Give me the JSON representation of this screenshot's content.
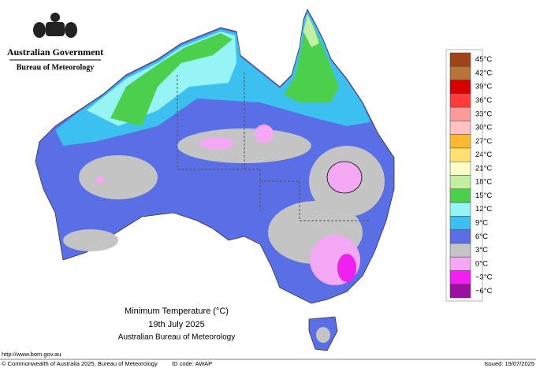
{
  "header": {
    "agency": "Australian Government",
    "bureau": "Bureau of Meteorology"
  },
  "map": {
    "title": "Minimum Temperature (°C)",
    "date": "19th July 2025",
    "source": "Australian Bureau of Meteorology"
  },
  "legend": [
    {
      "label": "45°C",
      "color": "#9e4418"
    },
    {
      "label": "42°C",
      "color": "#b8753a"
    },
    {
      "label": "39°C",
      "color": "#d80000"
    },
    {
      "label": "36°C",
      "color": "#ff3c3c"
    },
    {
      "label": "33°C",
      "color": "#ff9a9a"
    },
    {
      "label": "30°C",
      "color": "#ffc2c2"
    },
    {
      "label": "27°C",
      "color": "#ffb830"
    },
    {
      "label": "24°C",
      "color": "#ffe070"
    },
    {
      "label": "21°C",
      "color": "#fdfdc8"
    },
    {
      "label": "18°C",
      "color": "#c4eea0"
    },
    {
      "label": "15°C",
      "color": "#4ccf4c"
    },
    {
      "label": "12°C",
      "color": "#96f4f4"
    },
    {
      "label": "9°C",
      "color": "#3cc0f0"
    },
    {
      "label": "6°C",
      "color": "#5a6ee6"
    },
    {
      "label": "3°C",
      "color": "#c4c4c4"
    },
    {
      "label": "0°C",
      "color": "#f4a8f4"
    },
    {
      "label": "−3°C",
      "color": "#f020f0"
    },
    {
      "label": "−6°C",
      "color": "#9a10a0"
    }
  ],
  "footer": {
    "url": "http://www.bom.gov.au",
    "copyright": "© Commonwealth of Australia 2025, Bureau of Meteorology",
    "id_code": "ID code: AWAP",
    "issued": "Issued: 19/07/2025"
  }
}
